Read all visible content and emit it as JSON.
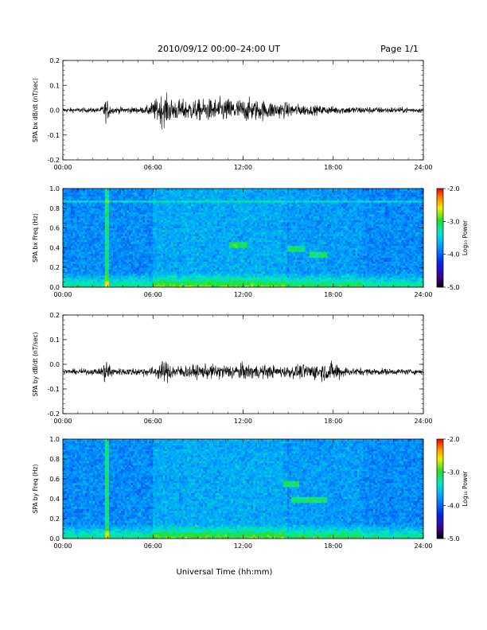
{
  "header": {
    "title": "2010/09/12  00:00–24:00 UT",
    "page": "Page 1/1"
  },
  "xlabel": "Universal Time (hh:mm)",
  "colorbar": {
    "label": "Log₁₀ Power",
    "ticks": [
      "-2.0",
      "-3.0",
      "-4.0",
      "-5.0"
    ],
    "range": [
      -5.0,
      -2.0
    ],
    "colormap": "rainbow"
  },
  "chart_data": [
    {
      "type": "line",
      "ylabel": "SPA bx dB/dt (nT/sec)",
      "xlim": [
        0,
        24
      ],
      "ylim": [
        -0.2,
        0.2
      ],
      "x_ticks": [
        "00:00",
        "06:00",
        "12:00",
        "18:00",
        "24:00"
      ],
      "y_ticks": [
        "0.2",
        "0.1",
        "0.0",
        "-0.1",
        "-0.2"
      ],
      "baseline": 0.0,
      "amplitude_envelope": [
        {
          "hour": 0,
          "amp": 0.015
        },
        {
          "hour": 2.5,
          "amp": 0.015
        },
        {
          "hour": 2.9,
          "amp": 0.075
        },
        {
          "hour": 3.3,
          "amp": 0.02
        },
        {
          "hour": 5.5,
          "amp": 0.02
        },
        {
          "hour": 6.0,
          "amp": 0.055
        },
        {
          "hour": 6.6,
          "amp": 0.1
        },
        {
          "hour": 7.5,
          "amp": 0.065
        },
        {
          "hour": 9.0,
          "amp": 0.065
        },
        {
          "hour": 10.5,
          "amp": 0.075
        },
        {
          "hour": 12.5,
          "amp": 0.07
        },
        {
          "hour": 14.5,
          "amp": 0.05
        },
        {
          "hour": 16.5,
          "amp": 0.03
        },
        {
          "hour": 18.0,
          "amp": 0.025
        },
        {
          "hour": 24.0,
          "amp": 0.015
        }
      ]
    },
    {
      "type": "heatmap",
      "ylabel": "SPA bx Freq (Hz)",
      "xlim": [
        0,
        24
      ],
      "ylim": [
        0.0,
        1.0
      ],
      "x_ticks": [
        "00:00",
        "06:00",
        "12:00",
        "18:00",
        "24:00"
      ],
      "y_ticks": [
        "1.0",
        "0.8",
        "0.6",
        "0.4",
        "0.2",
        "0.0"
      ],
      "zlim": [
        -5.0,
        -2.0
      ],
      "features": [
        {
          "hour": 2.9,
          "type": "broadband-spike"
        },
        {
          "freq": 0.87,
          "type": "narrowband-line"
        },
        {
          "hour": 11.7,
          "freq": 0.43,
          "type": "emission"
        },
        {
          "hour": 15.5,
          "freq": 0.38,
          "type": "emission"
        },
        {
          "hour": 17.0,
          "freq": 0.33,
          "type": "emission"
        }
      ]
    },
    {
      "type": "line",
      "ylabel": "SPA by dB/dt (nT/sec)",
      "xlim": [
        0,
        24
      ],
      "ylim": [
        -0.2,
        0.2
      ],
      "x_ticks": [
        "00:00",
        "06:00",
        "12:00",
        "18:00",
        "24:00"
      ],
      "y_ticks": [
        "0.2",
        "0.1",
        "0.0",
        "-0.1",
        "-0.2"
      ],
      "baseline": -0.03,
      "amplitude_envelope": [
        {
          "hour": 0,
          "amp": 0.015
        },
        {
          "hour": 2.5,
          "amp": 0.02
        },
        {
          "hour": 2.9,
          "amp": 0.09
        },
        {
          "hour": 3.4,
          "amp": 0.02
        },
        {
          "hour": 6.0,
          "amp": 0.03
        },
        {
          "hour": 6.8,
          "amp": 0.07
        },
        {
          "hour": 7.5,
          "amp": 0.04
        },
        {
          "hour": 10.5,
          "amp": 0.045
        },
        {
          "hour": 12.0,
          "amp": 0.05
        },
        {
          "hour": 14.5,
          "amp": 0.035
        },
        {
          "hour": 18.2,
          "amp": 0.06
        },
        {
          "hour": 19.0,
          "amp": 0.025
        },
        {
          "hour": 24.0,
          "amp": 0.015
        }
      ]
    },
    {
      "type": "heatmap",
      "ylabel": "SPA by Freq (Hz)",
      "xlim": [
        0,
        24
      ],
      "ylim": [
        0.0,
        1.0
      ],
      "x_ticks": [
        "00:00",
        "06:00",
        "12:00",
        "18:00",
        "24:00"
      ],
      "y_ticks": [
        "1.0",
        "0.8",
        "0.6",
        "0.4",
        "0.2",
        "0.0"
      ],
      "zlim": [
        -5.0,
        -2.0
      ],
      "features": [
        {
          "hour": 2.9,
          "type": "broadband-spike"
        },
        {
          "hour": 15.2,
          "freq": 0.55,
          "type": "emission"
        },
        {
          "hour": 15.8,
          "freq": 0.38,
          "type": "emission"
        },
        {
          "hour": 17.0,
          "freq": 0.38,
          "type": "emission"
        }
      ]
    }
  ]
}
